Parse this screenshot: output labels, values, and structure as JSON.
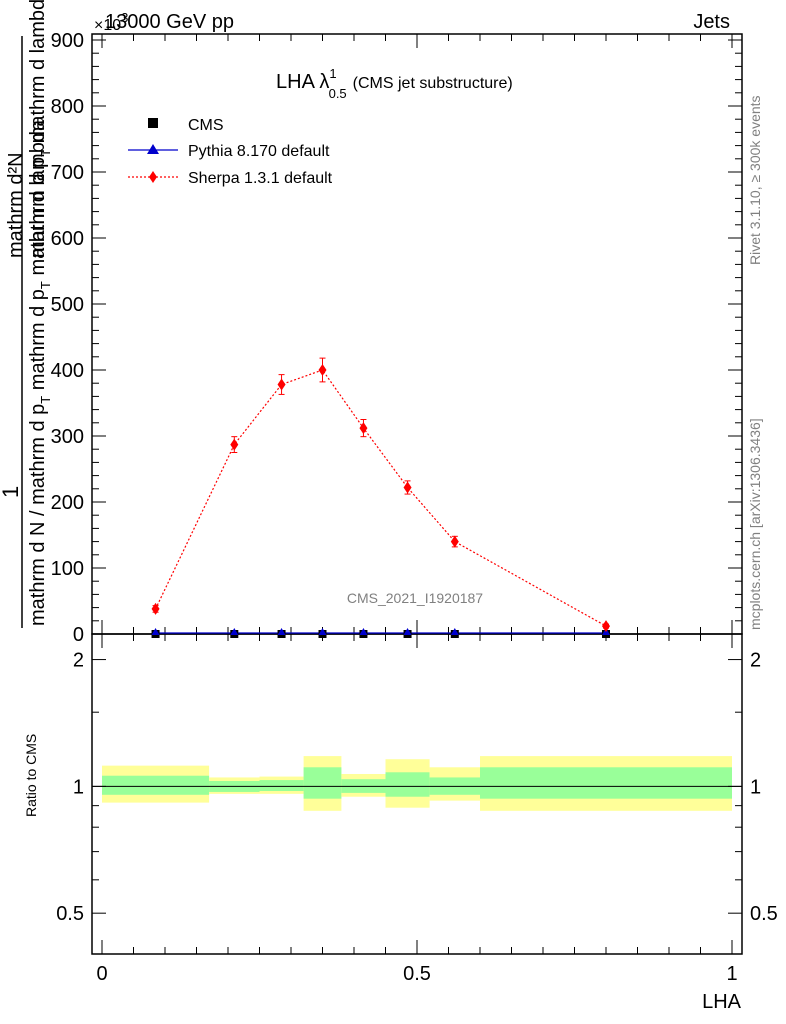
{
  "header": {
    "left": "13000 GeV pp",
    "right": "Jets",
    "exponent": "×10",
    "exponent_power": "3"
  },
  "side_text": {
    "rivet": "Rivet 3.1.10, ≥ 300k events",
    "mcplots": "mcplots.cern.ch [arXiv:1306.3436]"
  },
  "watermark": "CMS_2021_I1920187",
  "plot_title": {
    "main": "LHA λ",
    "sup": "1",
    "sub": "0.5",
    "suffix": "(CMS jet substructure)"
  },
  "ylabel": {
    "numerator": "mathrm d²N",
    "numerator_tail": "mathrm d p",
    "numerator_tail_sub": "T",
    "numerator_end": " mathrm d lambda",
    "leading": "1",
    "denominator": "mathrm d N / mathrm d p",
    "denominator_sub": "T",
    "denominator_end": " mathrm d p",
    "denominator_tail_sub": "T",
    "denominator_tail": " mathrm d lambda"
  },
  "ratio_ylabel": "Ratio to CMS",
  "xlabel": "LHA",
  "legend": {
    "cms": "CMS",
    "pythia": "Pythia 8.170 default",
    "sherpa": "Sherpa 1.3.1 default"
  },
  "colors": {
    "sherpa": "#ff0000",
    "pythia": "#0000cc",
    "cms": "#000000",
    "band_inner": "#99ff99",
    "band_outer": "#ffff99"
  },
  "chart_data": {
    "type": "line",
    "xlim": [
      0,
      1
    ],
    "ylim": [
      0,
      900
    ],
    "y_multiplier": 1000,
    "y_ticks": [
      0,
      100,
      200,
      300,
      400,
      500,
      600,
      700,
      800,
      900
    ],
    "y_tick_labels": [
      "0",
      "100",
      "200",
      "300",
      "400",
      "500",
      "600",
      "700",
      "800",
      "900"
    ],
    "x_ticks": [
      0,
      0.5,
      1
    ],
    "x_tick_labels": [
      "0",
      "0.5",
      "1"
    ],
    "bins": [
      [
        0,
        0.17
      ],
      [
        0.17,
        0.25
      ],
      [
        0.25,
        0.32
      ],
      [
        0.32,
        0.38
      ],
      [
        0.38,
        0.45
      ],
      [
        0.45,
        0.52
      ],
      [
        0.52,
        0.6
      ],
      [
        0.6,
        1.0
      ]
    ],
    "x": [
      0.085,
      0.21,
      0.285,
      0.35,
      0.415,
      0.485,
      0.56,
      0.8
    ],
    "series": [
      {
        "name": "CMS",
        "marker": "square",
        "values": [
          0,
          0,
          0,
          0,
          0,
          0,
          0,
          0
        ]
      },
      {
        "name": "Pythia 8.170 default",
        "marker": "triangle",
        "values": [
          0,
          0,
          0,
          0,
          0,
          0,
          0,
          0
        ]
      },
      {
        "name": "Sherpa 1.3.1 default",
        "marker": "diamond",
        "values": [
          38,
          287,
          378,
          400,
          312,
          222,
          140,
          12
        ],
        "errors": [
          5,
          12,
          15,
          18,
          13,
          10,
          8,
          3
        ]
      }
    ],
    "ratio": {
      "ylim_log": [
        0.4,
        2.3
      ],
      "ticks": [
        0.5,
        1,
        2
      ],
      "tick_labels": [
        "0.5",
        "1",
        "2"
      ],
      "inner_band": [
        [
          0.955,
          1.06
        ],
        [
          0.97,
          1.03
        ],
        [
          0.975,
          1.035
        ],
        [
          0.935,
          1.11
        ],
        [
          0.965,
          1.04
        ],
        [
          0.945,
          1.08
        ],
        [
          0.955,
          1.05
        ],
        [
          0.935,
          1.11
        ]
      ],
      "outer_band": [
        [
          0.915,
          1.12
        ],
        [
          0.96,
          1.05
        ],
        [
          0.96,
          1.055
        ],
        [
          0.875,
          1.18
        ],
        [
          0.945,
          1.07
        ],
        [
          0.89,
          1.16
        ],
        [
          0.925,
          1.11
        ],
        [
          0.875,
          1.18
        ]
      ]
    }
  }
}
